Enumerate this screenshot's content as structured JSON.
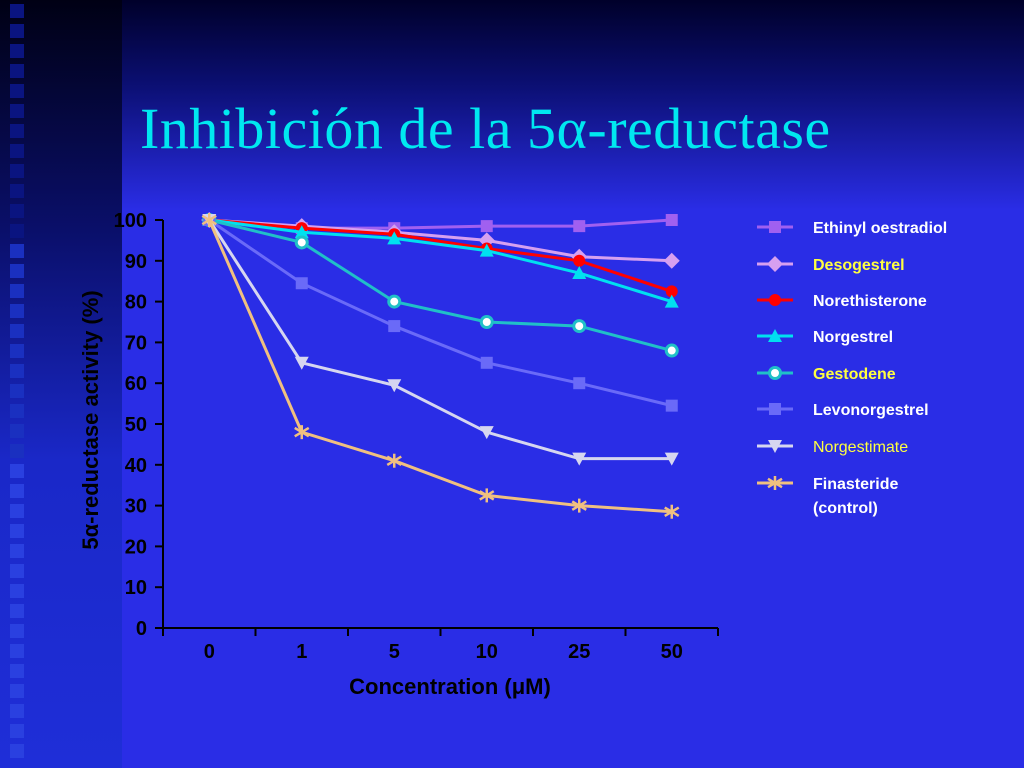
{
  "slide": {
    "title": "Inhibición de la 5α-reductase"
  },
  "chart_data": {
    "type": "line",
    "xlabel": "Concentration (μM)",
    "ylabel": "5α-reductase activity (%)",
    "categories": [
      "0",
      "1",
      "5",
      "10",
      "25",
      "50"
    ],
    "ylim": [
      0,
      100
    ],
    "yticks": [
      0,
      10,
      20,
      30,
      40,
      50,
      60,
      70,
      80,
      90,
      100
    ],
    "grid": false,
    "legend_position": "right",
    "series": [
      {
        "name": "Ethinyl oestradiol",
        "values": [
          100,
          98,
          98,
          98.5,
          98.5,
          100
        ],
        "color": "#a060f0",
        "marker": "square",
        "label_color": "#ffffff"
      },
      {
        "name": "Desogestrel",
        "values": [
          100,
          98.5,
          97,
          95,
          91,
          90
        ],
        "color": "#d6a0f0",
        "marker": "diamond",
        "label_color": "#ffff40"
      },
      {
        "name": "Norethisterone",
        "values": [
          100,
          98,
          96.5,
          93,
          90,
          82.5
        ],
        "color": "#ff0000",
        "marker": "circle",
        "label_color": "#ffffff"
      },
      {
        "name": "Norgestrel",
        "values": [
          100,
          97,
          95.5,
          92.5,
          87,
          80
        ],
        "color": "#00e0f0",
        "marker": "triangle-up",
        "label_color": "#ffffff"
      },
      {
        "name": "Gestodene",
        "values": [
          100,
          94.5,
          80,
          75,
          74,
          68
        ],
        "color": "#20c0c8",
        "marker": "ring",
        "label_color": "#ffff40"
      },
      {
        "name": "Levonorgestrel",
        "values": [
          100,
          84.5,
          74,
          65,
          60,
          54.5
        ],
        "color": "#6a6af8",
        "marker": "square",
        "label_color": "#ffffff"
      },
      {
        "name": "Norgestimate",
        "values": [
          100,
          65,
          59.5,
          48,
          41.5,
          41.5
        ],
        "color": "#d6d6f0",
        "marker": "triangle-down",
        "label_color": "#ffff40"
      },
      {
        "name": "Finasteride (control)",
        "values": [
          100,
          48,
          41,
          32.5,
          30,
          28.5
        ],
        "color": "#f0c080",
        "marker": "asterisk",
        "label_color": "#ffffff"
      }
    ]
  }
}
